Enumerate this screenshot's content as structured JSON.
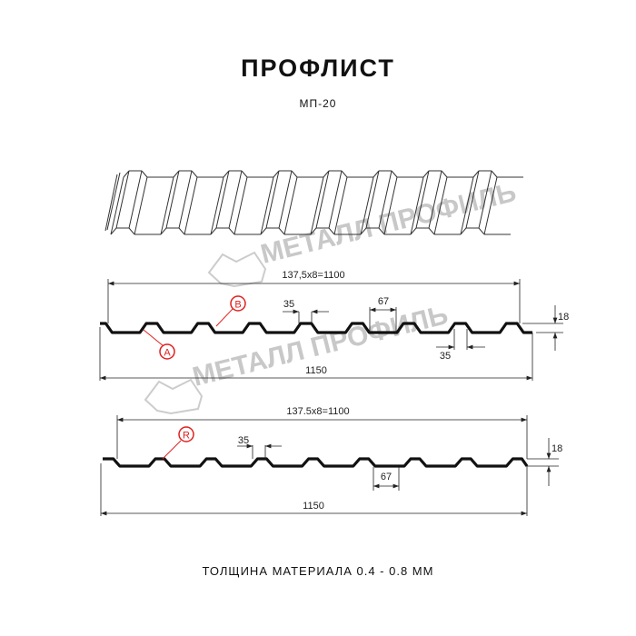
{
  "header": {
    "title": "ПРОФЛИСТ",
    "subtitle": "МП-20"
  },
  "watermark": "МЕТАЛЛ ПРОФИЛЬ",
  "profile_a": {
    "pitch_label": "137,5x8=1100",
    "rib_top_label": "35",
    "rib_bottom_label": "35",
    "rib_width_label": "67",
    "height_label": "18",
    "total_width_label": "1150",
    "marker_b": "B",
    "marker_a": "A"
  },
  "profile_r": {
    "pitch_label": "137.5x8=1100",
    "rib_top_label": "35",
    "rib_width_label": "67",
    "height_label": "18",
    "total_width_label": "1150",
    "marker_r": "R"
  },
  "footer": {
    "thickness_label": "ТОЛЩИНА МАТЕРИАЛА 0.4 - 0.8 ММ"
  },
  "colors": {
    "line": "#111111",
    "marker": "#e02020",
    "watermark": "#c8c8c8"
  }
}
